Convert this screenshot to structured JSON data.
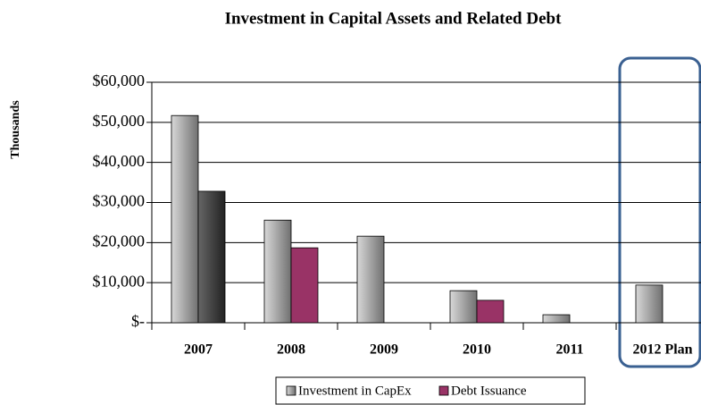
{
  "chart_data": {
    "type": "bar",
    "title": "Investment in Capital Assets and Related Debt",
    "y_label": "Thousands",
    "categories": [
      "2007",
      "2008",
      "2009",
      "2010",
      "2011",
      "2012 Plan"
    ],
    "series": [
      {
        "name": "Investment in CapEx",
        "color": "#909090",
        "values": [
          51700,
          25600,
          21600,
          8000,
          2000,
          9400
        ]
      },
      {
        "name": "Debt Issuance",
        "color": "#993366",
        "colors": [
          "#444444",
          "#993366",
          "#993366",
          "#993366",
          "#993366",
          "#993366"
        ],
        "values": [
          32800,
          18700,
          null,
          5600,
          null,
          null
        ]
      }
    ],
    "ylim": [
      0,
      60000
    ],
    "yticks": [
      {
        "value": 0,
        "label": "$-"
      },
      {
        "value": 10000,
        "label": "$10,000"
      },
      {
        "value": 20000,
        "label": "$20,000"
      },
      {
        "value": 30000,
        "label": "$30,000"
      },
      {
        "value": 40000,
        "label": "$40,000"
      },
      {
        "value": 50000,
        "label": "$50,000"
      },
      {
        "value": 60000,
        "label": "$60,000"
      }
    ],
    "grid": true,
    "legend": "bottom"
  }
}
